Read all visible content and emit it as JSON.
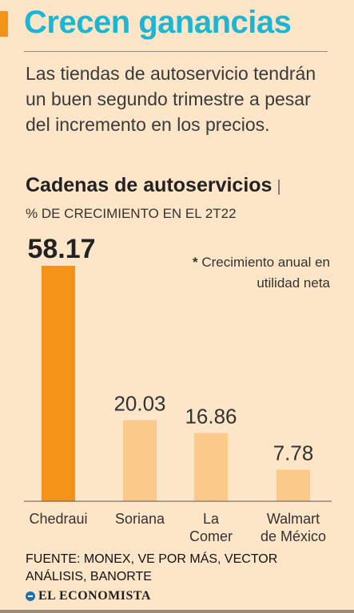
{
  "header": {
    "title": "Crecen ganancias",
    "subtitle": "Las tiendas de autoservicio tendrán un buen segundo trimestre a pesar del incremento en los precios."
  },
  "chart_data": {
    "type": "bar",
    "title": "Cadenas de autoservicios",
    "unit_label": "% DE CRECIMIENTO EN EL 2T22",
    "note_symbol": "*",
    "note": "Crecimiento anual en utilidad neta",
    "categories": [
      "Chedraui",
      "Soriana",
      "La Comer",
      "Walmart de México"
    ],
    "values": [
      58.17,
      20.03,
      16.86,
      7.78
    ],
    "value_labels": [
      "58.17",
      "20.03",
      "16.86",
      "7.78"
    ],
    "highlight_index": 0,
    "ylim": [
      0,
      58.17
    ],
    "grid": false,
    "colors": {
      "highlight": "#f39419",
      "bar": "#fbc98a",
      "text": "#333333"
    }
  },
  "footer": {
    "source": "FUENTE: MONEX, VE POR MÁS, VECTOR ANÁLISIS, BANORTE",
    "logo_text": "EL ECONOMISTA",
    "logo_icon": "economista-logo-icon"
  }
}
